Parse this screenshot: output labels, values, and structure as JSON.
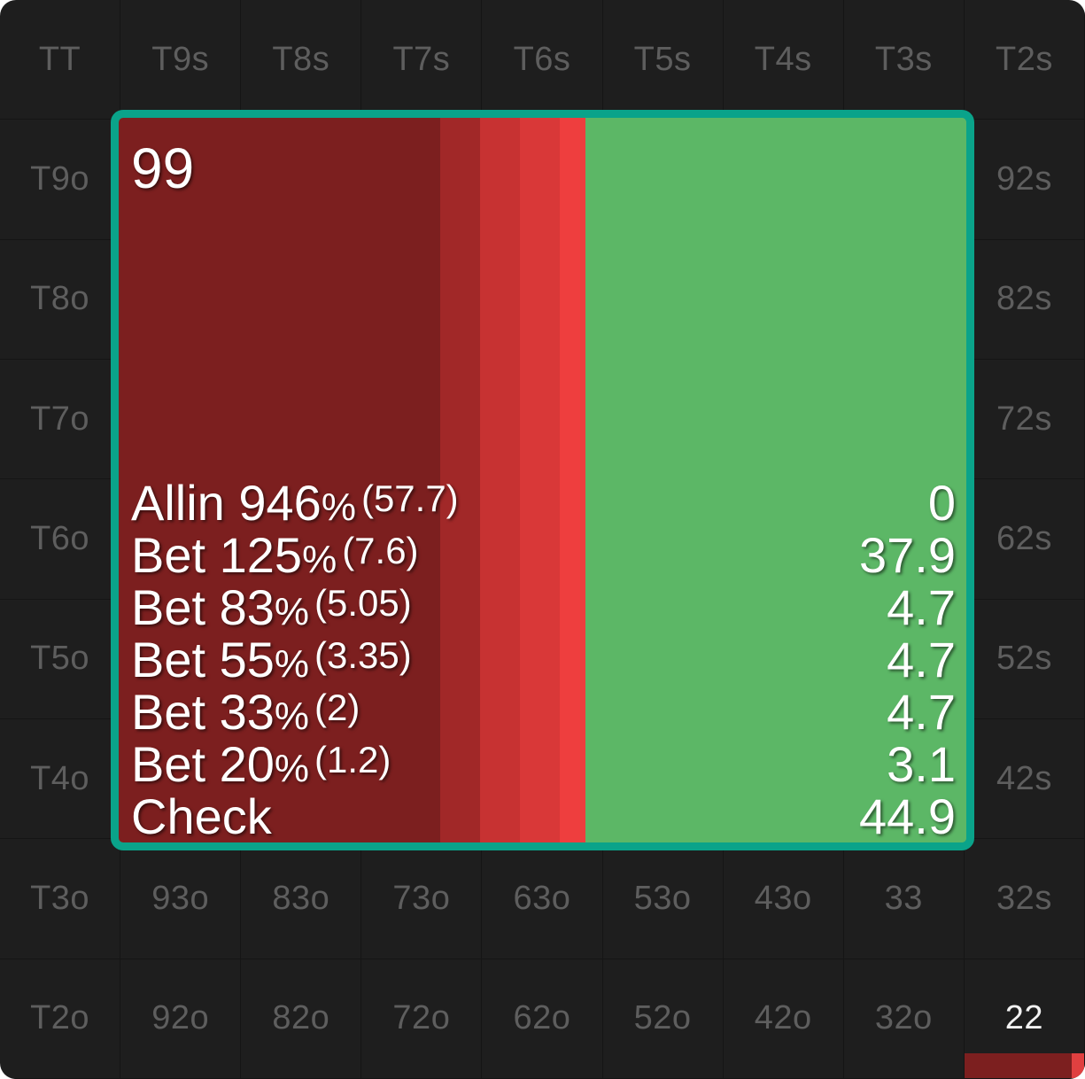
{
  "grid": {
    "rows": [
      [
        "TT",
        "T9s",
        "T8s",
        "T7s",
        "T6s",
        "T5s",
        "T4s",
        "T3s",
        "T2s"
      ],
      [
        "T9o",
        "",
        "",
        "",
        "",
        "",
        "",
        "",
        "92s"
      ],
      [
        "T8o",
        "",
        "",
        "",
        "",
        "",
        "",
        "",
        "82s"
      ],
      [
        "T7o",
        "",
        "",
        "",
        "",
        "",
        "",
        "",
        "72s"
      ],
      [
        "T6o",
        "",
        "",
        "",
        "",
        "",
        "",
        "",
        "62s"
      ],
      [
        "T5o",
        "",
        "",
        "",
        "",
        "",
        "",
        "",
        "52s"
      ],
      [
        "T4o",
        "",
        "",
        "",
        "",
        "",
        "",
        "",
        "42s"
      ],
      [
        "T3o",
        "93o",
        "83o",
        "73o",
        "63o",
        "53o",
        "43o",
        "33",
        "32s"
      ],
      [
        "T2o",
        "92o",
        "82o",
        "72o",
        "62o",
        "52o",
        "42o",
        "32o",
        "22"
      ]
    ],
    "active_hand": "22",
    "active_hand_frequency": [
      {
        "color": "#7c1f1f",
        "value": 0.9
      },
      {
        "color": "#e04040",
        "value": 0.1
      }
    ]
  },
  "detail": {
    "hand": "99",
    "actions": [
      {
        "label": "Allin",
        "pct": "946%",
        "size": "(57.7)",
        "value": "0",
        "color": "#7c1f1f"
      },
      {
        "label": "Bet",
        "pct": "125%",
        "size": "(7.6)",
        "value": "37.9",
        "color": "#7c1f1f"
      },
      {
        "label": "Bet",
        "pct": "83%",
        "size": "(5.05)",
        "value": "4.7",
        "color": "#a12828"
      },
      {
        "label": "Bet",
        "pct": "55%",
        "size": "(3.35)",
        "value": "4.7",
        "color": "#c73232"
      },
      {
        "label": "Bet",
        "pct": "33%",
        "size": "(2)",
        "value": "4.7",
        "color": "#d93838"
      },
      {
        "label": "Bet",
        "pct": "20%",
        "size": "(1.2)",
        "value": "3.1",
        "color": "#ee3e3e"
      },
      {
        "label": "Check",
        "pct": "",
        "size": "",
        "value": "44.9",
        "color": "#5cb766"
      }
    ]
  },
  "colors": {
    "background": "#1e1e1e",
    "cell_text": "#5e5e5e",
    "accent_border": "#0aa38a",
    "check": "#5cb766"
  }
}
